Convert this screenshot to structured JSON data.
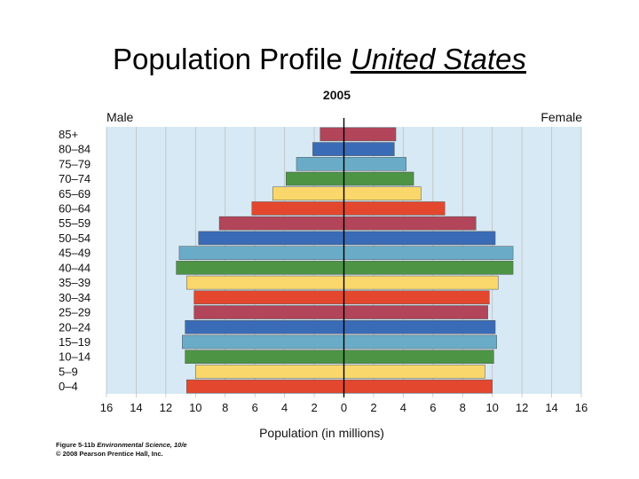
{
  "title": {
    "prefix": "Population Profile",
    "country": "United States"
  },
  "chart_data": {
    "type": "bar",
    "subtype": "population-pyramid",
    "title": "2005",
    "left_label": "Male",
    "right_label": "Female",
    "xlabel": "Population (in millions)",
    "xlim": [
      -16,
      16
    ],
    "x_ticks": [
      16,
      14,
      12,
      10,
      8,
      6,
      4,
      2,
      0,
      2,
      4,
      6,
      8,
      10,
      12,
      14,
      16
    ],
    "categories": [
      "85+",
      "80–84",
      "75–79",
      "70–74",
      "65–69",
      "60–64",
      "55–59",
      "50–54",
      "45–49",
      "40–44",
      "35–39",
      "30–34",
      "25–29",
      "20–24",
      "15–19",
      "10–14",
      "5–9",
      "0–4"
    ],
    "series": [
      {
        "name": "Male",
        "values": [
          1.6,
          2.1,
          3.2,
          3.9,
          4.8,
          6.2,
          8.4,
          9.8,
          11.1,
          11.3,
          10.6,
          10.1,
          10.1,
          10.7,
          10.9,
          10.7,
          10.0,
          10.6
        ]
      },
      {
        "name": "Female",
        "values": [
          3.5,
          3.4,
          4.2,
          4.7,
          5.2,
          6.8,
          8.9,
          10.2,
          11.4,
          11.4,
          10.4,
          9.8,
          9.7,
          10.2,
          10.3,
          10.1,
          9.5,
          10.0
        ]
      }
    ],
    "colors": [
      "#e3482f",
      "#f9d76a",
      "#4d9445",
      "#6aacc8",
      "#3a6bb6",
      "#b24559"
    ],
    "background": "#d6e9f4",
    "grid": true
  },
  "credit": {
    "figure": "Figure 5-11b",
    "book": "Environmental Science, 10/e",
    "copyright": "© 2008 Pearson Prentice Hall, Inc."
  }
}
